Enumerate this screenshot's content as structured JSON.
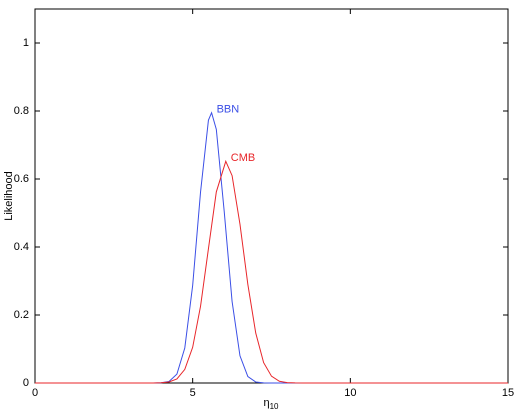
{
  "chart_data": {
    "type": "line",
    "x_label": {
      "symbol": "η",
      "subscript": "10"
    },
    "y_label": "Likelihood",
    "xlim": [
      0,
      15
    ],
    "ylim": [
      0,
      1.1
    ],
    "xticks": [
      0,
      5,
      10,
      15
    ],
    "yticks": [
      0,
      0.2,
      0.4,
      0.6,
      0.8,
      1
    ],
    "series": [
      {
        "name": "BBN",
        "color": "#3b4fe6",
        "x": [
          0,
          3.5,
          3.75,
          4,
          4.25,
          4.5,
          4.75,
          5,
          5.25,
          5.5,
          5.6,
          5.75,
          6,
          6.25,
          6.5,
          6.75,
          7,
          7.25,
          7.5,
          15
        ],
        "values": [
          0,
          0,
          0,
          0.0006,
          0.0045,
          0.026,
          0.103,
          0.287,
          0.562,
          0.773,
          0.795,
          0.746,
          0.505,
          0.24,
          0.08,
          0.019,
          0.003,
          0.0004,
          0,
          0
        ]
      },
      {
        "name": "CMB",
        "color": "#e8262a",
        "x": [
          0,
          3.75,
          4,
          4.25,
          4.5,
          4.75,
          5,
          5.25,
          5.5,
          5.75,
          6.05,
          6.25,
          6.5,
          6.75,
          7,
          7.25,
          7.5,
          7.75,
          8,
          8.25,
          8.5,
          15
        ],
        "values": [
          0,
          0,
          0.0006,
          0.003,
          0.012,
          0.04,
          0.105,
          0.226,
          0.395,
          0.562,
          0.652,
          0.61,
          0.467,
          0.29,
          0.147,
          0.06,
          0.02,
          0.005,
          0.001,
          0.0002,
          0,
          0
        ]
      }
    ]
  }
}
